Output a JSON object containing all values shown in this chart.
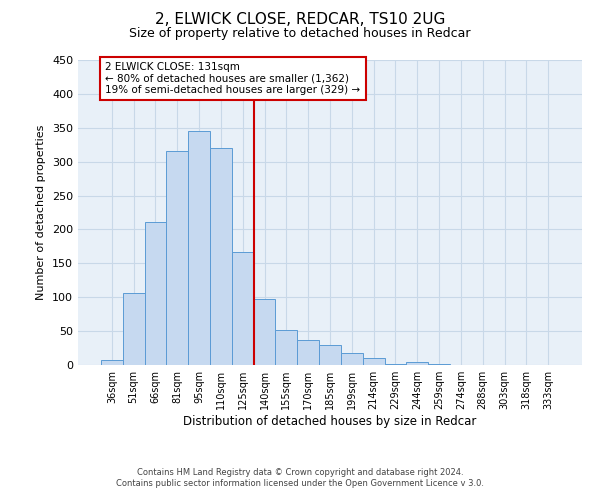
{
  "title": "2, ELWICK CLOSE, REDCAR, TS10 2UG",
  "subtitle": "Size of property relative to detached houses in Redcar",
  "xlabel": "Distribution of detached houses by size in Redcar",
  "ylabel": "Number of detached properties",
  "bar_labels": [
    "36sqm",
    "51sqm",
    "66sqm",
    "81sqm",
    "95sqm",
    "110sqm",
    "125sqm",
    "140sqm",
    "155sqm",
    "170sqm",
    "185sqm",
    "199sqm",
    "214sqm",
    "229sqm",
    "244sqm",
    "259sqm",
    "274sqm",
    "288sqm",
    "303sqm",
    "318sqm",
    "333sqm"
  ],
  "bar_heights": [
    7,
    106,
    211,
    316,
    345,
    320,
    166,
    97,
    51,
    37,
    30,
    18,
    10,
    1,
    5,
    1,
    0,
    0,
    0,
    0,
    0
  ],
  "bar_color": "#c6d9f0",
  "bar_edgecolor": "#5b9bd5",
  "vline_x": 6.5,
  "vline_color": "#cc0000",
  "annotation_title": "2 ELWICK CLOSE: 131sqm",
  "annotation_line1": "← 80% of detached houses are smaller (1,362)",
  "annotation_line2": "19% of semi-detached houses are larger (329) →",
  "annotation_box_edgecolor": "#cc0000",
  "ylim": [
    0,
    450
  ],
  "yticks": [
    0,
    50,
    100,
    150,
    200,
    250,
    300,
    350,
    400,
    450
  ],
  "footer_line1": "Contains HM Land Registry data © Crown copyright and database right 2024.",
  "footer_line2": "Contains public sector information licensed under the Open Government Licence v 3.0.",
  "background_color": "#ffffff",
  "grid_color": "#c8d8e8"
}
